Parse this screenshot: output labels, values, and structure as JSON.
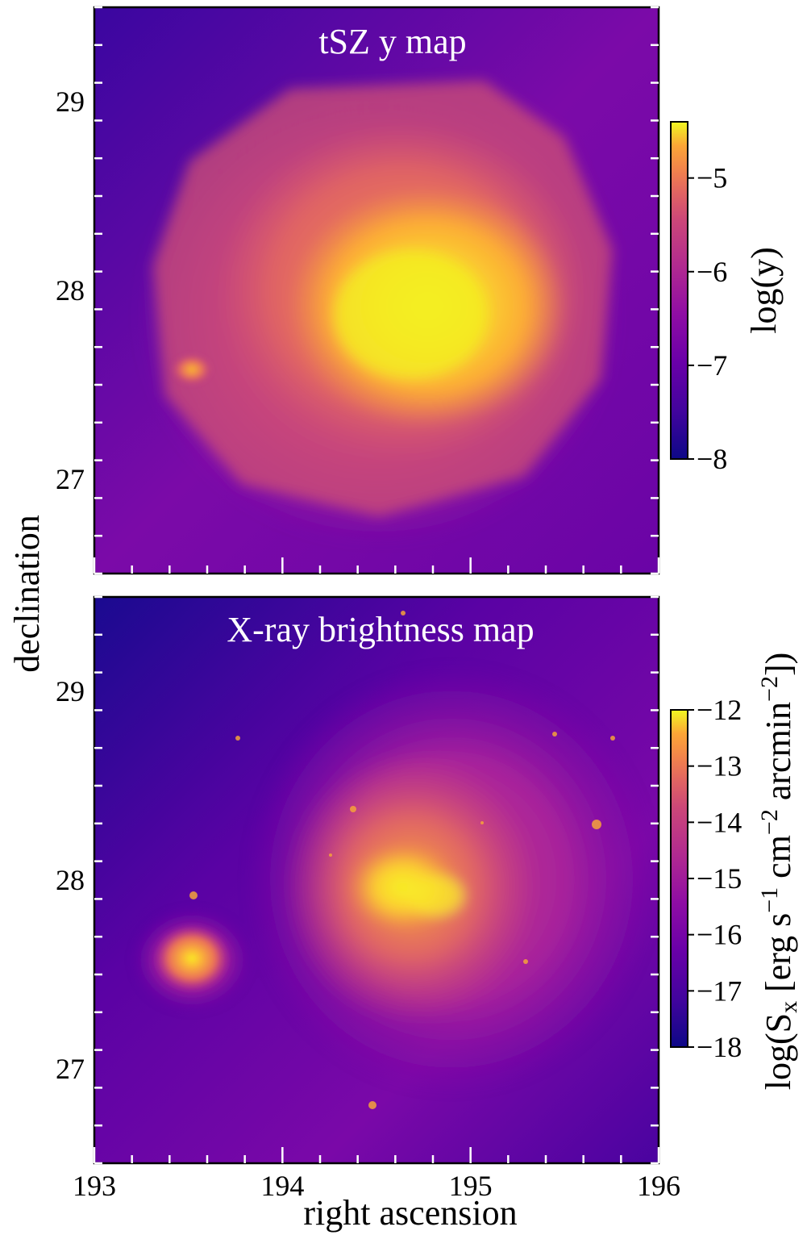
{
  "chart_data": [
    {
      "type": "heatmap",
      "title": "tSZ y map",
      "xlabel": "right ascension",
      "ylabel": "declination",
      "xlim": [
        193,
        196
      ],
      "ylim": [
        26.5,
        29.5
      ],
      "xticks": [
        193,
        194,
        195,
        196
      ],
      "xtick_labels": [
        "193",
        "194",
        "195",
        "196"
      ],
      "yticks": [
        27,
        28,
        29
      ],
      "ytick_labels": [
        "27",
        "28",
        "29"
      ],
      "colormap": "plasma",
      "colorbar": {
        "label": "log(y)",
        "range": [
          -8,
          -4.4
        ],
        "ticks": [
          -8,
          -7,
          -6,
          -5
        ],
        "tick_labels": [
          "−8",
          "−7",
          "−6",
          "−5"
        ]
      },
      "features": [
        {
          "ra": 194.7,
          "dec": 27.9,
          "level": -4.5
        },
        {
          "ra": 193.52,
          "dec": 27.58,
          "level": -5.9
        }
      ]
    },
    {
      "type": "heatmap",
      "title": "X-ray brightness map",
      "xlabel": "right ascension",
      "ylabel": "declination",
      "xlim": [
        193,
        196
      ],
      "ylim": [
        26.5,
        29.5
      ],
      "xticks": [
        193,
        194,
        195,
        196
      ],
      "xtick_labels": [
        "193",
        "194",
        "195",
        "196"
      ],
      "yticks": [
        27,
        28,
        29
      ],
      "ytick_labels": [
        "27",
        "28",
        "29"
      ],
      "colormap": "plasma",
      "colorbar": {
        "label": "log(S_x [erg s^-1 cm^-2 arcmin^-2])",
        "range": [
          -18,
          -12
        ],
        "ticks": [
          -18,
          -17,
          -16,
          -15,
          -14,
          -13,
          -12
        ],
        "tick_labels": [
          "−18",
          "−17",
          "−16",
          "−15",
          "−14",
          "−13",
          "−12"
        ]
      },
      "features": [
        {
          "ra": 194.6,
          "dec": 27.9,
          "level": -12.2
        },
        {
          "ra": 193.52,
          "dec": 27.58,
          "level": -12.4
        }
      ]
    }
  ]
}
